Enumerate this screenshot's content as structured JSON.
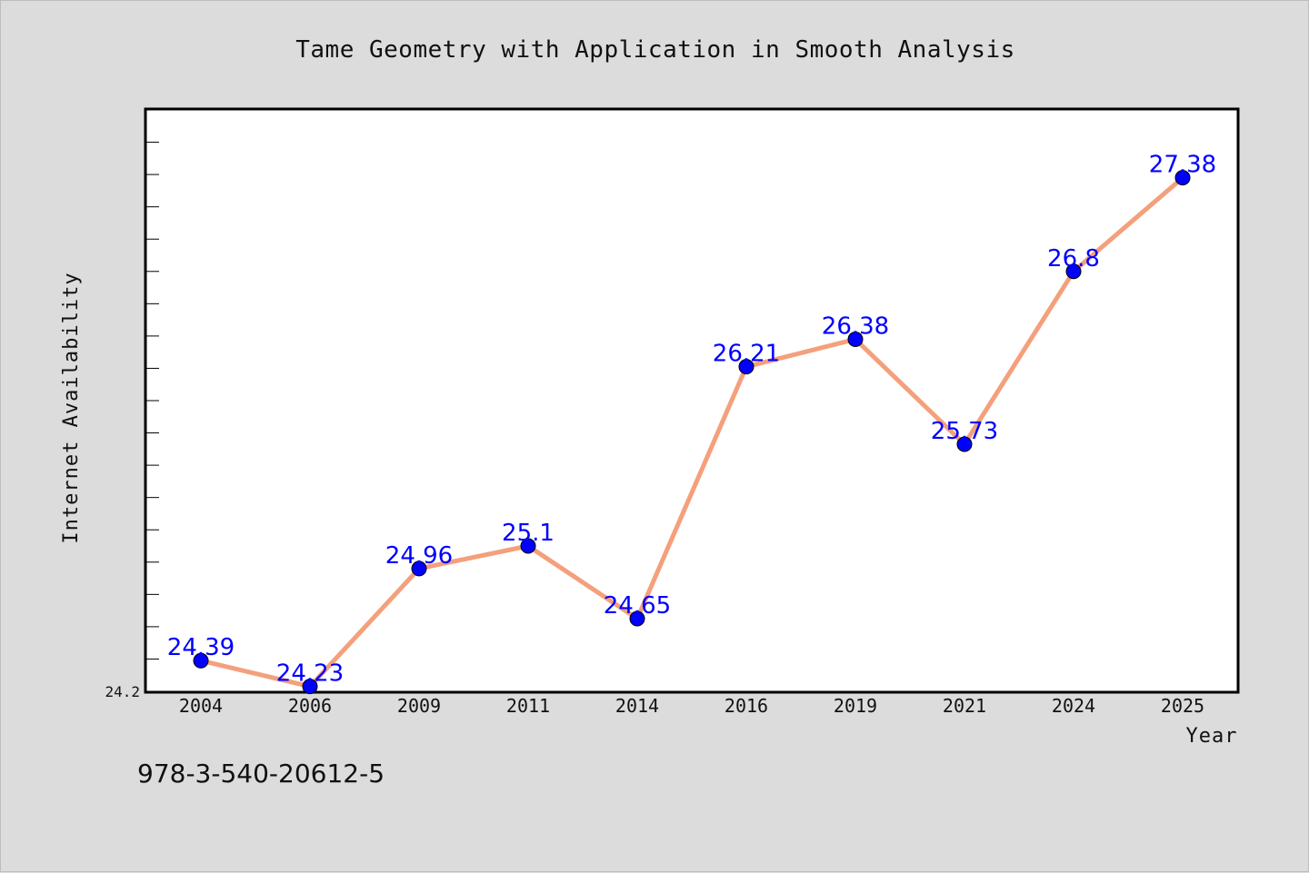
{
  "chart_data": {
    "type": "line",
    "title": "Tame Geometry with Application in Smooth Analysis",
    "xlabel": "Year",
    "ylabel": "Internet Availability",
    "categories": [
      "2004",
      "2006",
      "2009",
      "2011",
      "2014",
      "2016",
      "2019",
      "2021",
      "2024",
      "2025"
    ],
    "series": [
      {
        "values": [
          24.39,
          24.23,
          24.96,
          25.1,
          24.65,
          26.21,
          26.38,
          25.73,
          26.8,
          27.38
        ],
        "line_color": "#f4a07c",
        "marker_color": "#0000ff"
      }
    ],
    "data_labels": [
      "24.39",
      "24.23",
      "24.96",
      "25.1",
      "24.65",
      "26.21",
      "26.38",
      "25.73",
      "26.8",
      "27.38"
    ],
    "ylim": [
      24.2,
      27.8
    ],
    "y_tick_labels": [
      "24.2"
    ],
    "minor_tick_step": 0.2,
    "grid": false,
    "legend": "none"
  },
  "footer": {
    "isbn": "978-3-540-20612-5"
  }
}
